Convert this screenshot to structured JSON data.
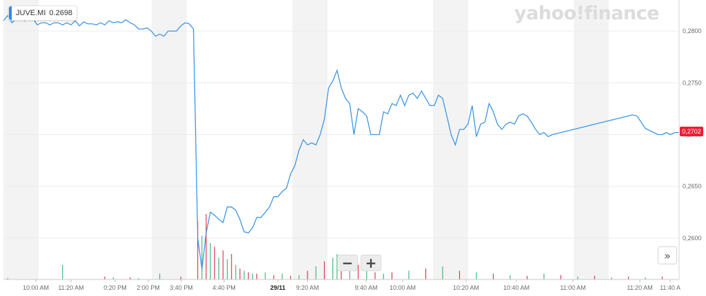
{
  "legend": {
    "symbol": "JUVE.MI",
    "value": "0.2698",
    "color": "#2f88e8"
  },
  "logo": "yahoo!finance",
  "current_price": {
    "label": "0,2702",
    "color": "#ef1d35"
  },
  "controls": {
    "zoom_out": "−",
    "zoom_in": "+",
    "expand": "»"
  },
  "colors": {
    "line": "#3d95e6",
    "volume_up": "#3cb878",
    "volume_down": "#e0374b",
    "band": "#f3f3f3"
  },
  "chart_data": {
    "type": "line",
    "series": [
      {
        "name": "JUVE.MI",
        "x_index": [
          0,
          1,
          2,
          3,
          4,
          5,
          6,
          7,
          8,
          9,
          10,
          11,
          12,
          13,
          14,
          15,
          16,
          17,
          18,
          19,
          20,
          21,
          22,
          23,
          24,
          25,
          26,
          27,
          28,
          29,
          30,
          31,
          32,
          33,
          34,
          35,
          36,
          37,
          38,
          39,
          40,
          41,
          42,
          43,
          44,
          45,
          46,
          47,
          48,
          49,
          50,
          51,
          52,
          53,
          54,
          55,
          56,
          57,
          58,
          59,
          60,
          61,
          62,
          63,
          64,
          65,
          66,
          67,
          68,
          69,
          70,
          71,
          72,
          73,
          74,
          75,
          76,
          77,
          78,
          79,
          80,
          81,
          82,
          83,
          84,
          85,
          86,
          87,
          88,
          89,
          90,
          91,
          92,
          93,
          94,
          95,
          96,
          97,
          98,
          99,
          100,
          101,
          102,
          103,
          104,
          105,
          106,
          107,
          108,
          109,
          110,
          111,
          112,
          113,
          114,
          115,
          116,
          117,
          118,
          119,
          120,
          121,
          122,
          123,
          124,
          125,
          126,
          127,
          128,
          129,
          130,
          131,
          132,
          133,
          134,
          135,
          136,
          137,
          138,
          139,
          140,
          141,
          142,
          143,
          144,
          145,
          146,
          147,
          148,
          149,
          150,
          151,
          152,
          153,
          154,
          155,
          156,
          157,
          158,
          159,
          160
        ],
        "values": [
          0.281,
          0.2815,
          0.2808,
          0.2812,
          0.2818,
          0.281,
          0.2815,
          0.2812,
          0.2806,
          0.2808,
          0.2808,
          0.2806,
          0.2808,
          0.2808,
          0.2806,
          0.2808,
          0.2806,
          0.281,
          0.2805,
          0.2809,
          0.2807,
          0.2807,
          0.2806,
          0.2808,
          0.2806,
          0.281,
          0.2808,
          0.2809,
          0.2808,
          0.2811,
          0.2808,
          0.2806,
          0.2802,
          0.2802,
          0.2803,
          0.28,
          0.2795,
          0.2797,
          0.2795,
          0.28,
          0.28,
          0.28,
          0.2805,
          0.2808,
          0.2807,
          0.2802,
          0.26,
          0.257,
          0.2605,
          0.2625,
          0.2622,
          0.2618,
          0.2615,
          0.263,
          0.263,
          0.2627,
          0.2618,
          0.2606,
          0.2605,
          0.261,
          0.262,
          0.262,
          0.2625,
          0.263,
          0.264,
          0.264,
          0.2645,
          0.2648,
          0.2662,
          0.267,
          0.2685,
          0.2695,
          0.269,
          0.2692,
          0.269,
          0.27,
          0.2715,
          0.2745,
          0.2752,
          0.2762,
          0.2745,
          0.2735,
          0.273,
          0.27,
          0.2725,
          0.2722,
          0.2718,
          0.27,
          0.27,
          0.27,
          0.2722,
          0.272,
          0.273,
          0.2728,
          0.2738,
          0.2728,
          0.2738,
          0.274,
          0.2735,
          0.2742,
          0.2735,
          0.2728,
          0.2728,
          0.2738,
          0.2735,
          0.2718,
          0.27,
          0.269,
          0.2705,
          0.2705,
          0.271,
          0.2728,
          0.2698,
          0.271,
          0.2712,
          0.273,
          0.2722,
          0.271,
          0.2705,
          0.271,
          0.2712,
          0.271,
          0.2718,
          0.272,
          0.2718,
          0.2712,
          0.2705,
          0.27,
          0.2702,
          0.2698,
          0.27,
          0.2701,
          0.2702,
          0.2703,
          0.2704,
          0.2705,
          0.2706,
          0.2707,
          0.2708,
          0.2709,
          0.271,
          0.2711,
          0.2712,
          0.2713,
          0.2714,
          0.2715,
          0.2716,
          0.2717,
          0.2718,
          0.2719,
          0.2718,
          0.2712,
          0.2706,
          0.2704,
          0.2702,
          0.27,
          0.27,
          0.2702,
          0.27,
          0.2702,
          0.2702
        ]
      }
    ],
    "x_tick_labels": [
      "10:00 AM",
      "11:20 AM",
      "0:20 PM",
      "2:00 PM",
      "3:40 PM",
      "4:40 PM",
      "29/11",
      "9:20 AM",
      "9:40 AM",
      "10:00 AM",
      "10:20 AM",
      "10:40 AM",
      "11:00 AM",
      "11:20 AM",
      "11:40 A"
    ],
    "y_tick_labels": [
      "0,2800",
      "0,2750",
      "0,2700",
      "0,2650",
      "0,2600"
    ],
    "y_ticks": [
      0.28,
      0.275,
      0.27,
      0.265,
      0.26
    ],
    "ylim": [
      0.256,
      0.283
    ],
    "volume": {
      "x_index": [
        1,
        14,
        24,
        26,
        30,
        32,
        37,
        42,
        46,
        47,
        48,
        49,
        50,
        51,
        52,
        53,
        54,
        55,
        56,
        57,
        58,
        59,
        60,
        62,
        64,
        66,
        68,
        70,
        72,
        74,
        76,
        78,
        79,
        80,
        82,
        84,
        86,
        88,
        90,
        92,
        96,
        100,
        104,
        108,
        112,
        116,
        120,
        124,
        128,
        132,
        136,
        140,
        144,
        148,
        152,
        156
      ],
      "values": [
        2,
        20,
        4,
        3,
        3,
        2,
        8,
        4,
        80,
        60,
        90,
        50,
        45,
        30,
        40,
        28,
        35,
        20,
        15,
        12,
        10,
        8,
        8,
        10,
        6,
        8,
        5,
        6,
        12,
        18,
        25,
        30,
        35,
        28,
        22,
        20,
        15,
        10,
        8,
        10,
        12,
        15,
        18,
        12,
        10,
        8,
        6,
        5,
        8,
        6,
        4,
        5,
        3,
        4,
        3,
        4
      ],
      "direction": [
        "up",
        "up",
        "down",
        "up",
        "down",
        "up",
        "up",
        "down",
        "down",
        "up",
        "down",
        "up",
        "down",
        "up",
        "down",
        "up",
        "down",
        "up",
        "down",
        "up",
        "down",
        "up",
        "down",
        "up",
        "down",
        "up",
        "down",
        "up",
        "down",
        "up",
        "down",
        "up",
        "up",
        "down",
        "up",
        "down",
        "up",
        "down",
        "up",
        "down",
        "up",
        "down",
        "up",
        "down",
        "up",
        "down",
        "up",
        "down",
        "up",
        "down",
        "up",
        "down",
        "up",
        "down",
        "up",
        "down"
      ]
    }
  }
}
